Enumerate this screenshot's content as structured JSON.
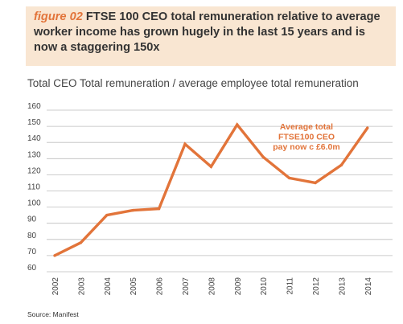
{
  "header": {
    "figure_label": "figure 02",
    "title": "FTSE 100 CEO total remuneration relative to average worker income has grown hugely in the last 15 years and is now a staggering 150x"
  },
  "source": "Source: Manifest",
  "colors": {
    "accent": "#e2743a",
    "header_background": "#f9e6d2",
    "annotation": "#e2743a",
    "grid": "#bdbdbd"
  },
  "chart_data": {
    "type": "line",
    "title": "Total CEO Total remuneration / average employee total remuneration",
    "xlabel": "",
    "ylabel": "",
    "x": [
      "2002",
      "2003",
      "2004",
      "2005",
      "2006",
      "2007",
      "2008",
      "2009",
      "2010",
      "2011",
      "2012",
      "2013",
      "2014"
    ],
    "series": [
      {
        "values": [
          70,
          78,
          95,
          98,
          99,
          139,
          125,
          151,
          131,
          118,
          115,
          126,
          149
        ]
      }
    ],
    "ylim": [
      60,
      160
    ],
    "yticks": [
      60,
      70,
      80,
      90,
      100,
      110,
      120,
      130,
      140,
      150,
      160
    ],
    "grid": true,
    "annotation": "Average total FTSE100 CEO pay now c £6.0m"
  }
}
